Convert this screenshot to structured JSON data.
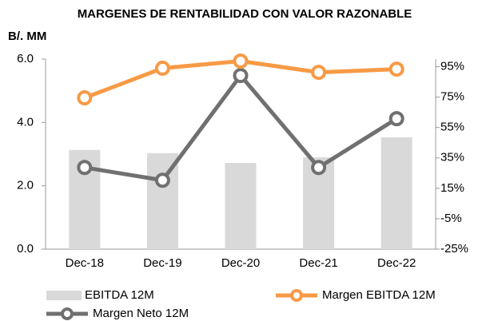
{
  "chart_data": {
    "type": "combo",
    "title": "MARGENES DE RENTABILIDAD CON VALOR RAZONABLE",
    "y_label": "B/. MM",
    "categories": [
      "Dec-18",
      "Dec-19",
      "Dec-20",
      "Dec-21",
      "Dec-22"
    ],
    "series": [
      {
        "name": "EBITDA 12M",
        "type": "bar",
        "color": "#d9d9d9",
        "values": [
          3.13,
          3.03,
          2.72,
          2.9,
          3.53
        ]
      },
      {
        "name": "Margen EBITDA 12M",
        "type": "line",
        "axis": "y2",
        "color": "#f79a45",
        "values": [
          74.5,
          94,
          98.7,
          91.3,
          93.4
        ]
      },
      {
        "name": "Margen Neto 12M",
        "type": "line",
        "axis": "y2",
        "color": "#707070",
        "values": [
          28.7,
          20.3,
          89.2,
          28.7,
          60.8
        ]
      }
    ],
    "ylim": [
      0,
      6
    ],
    "yticks": [
      {
        "value": 0,
        "label": "0.0"
      },
      {
        "value": 2,
        "label": "2.0"
      },
      {
        "value": 4,
        "label": "4.0"
      },
      {
        "value": 6,
        "label": "6.0"
      }
    ],
    "y2lim": [
      -25,
      100
    ],
    "y2ticks": [
      {
        "value": -25,
        "label": "-25%"
      },
      {
        "value": -5,
        "label": "-5%"
      },
      {
        "value": 15,
        "label": "15%"
      },
      {
        "value": 35,
        "label": "35%"
      },
      {
        "value": 55,
        "label": "55%"
      },
      {
        "value": 75,
        "label": "75%"
      },
      {
        "value": 95,
        "label": "95%"
      }
    ],
    "legend": "bottom"
  }
}
